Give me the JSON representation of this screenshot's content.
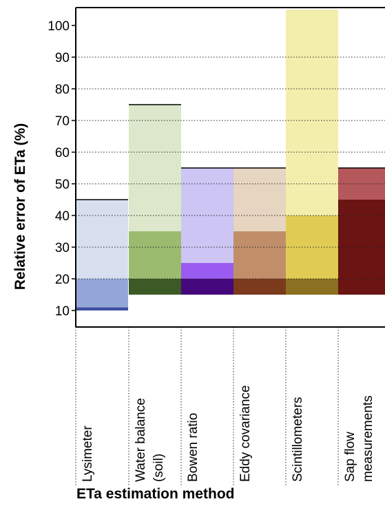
{
  "chart_data": {
    "type": "bar",
    "ylabel": "Relative error of ETa (%)",
    "xlabel": "ETa estimation method",
    "yticks": [
      10,
      20,
      30,
      40,
      50,
      60,
      70,
      80,
      90,
      100
    ],
    "ylim": [
      0,
      105
    ],
    "grid": "horizontal dotted",
    "categories": [
      {
        "label": [
          "Lysimeter"
        ]
      },
      {
        "label": [
          "Water balance",
          "(soil)"
        ]
      },
      {
        "label": [
          "Bowen ratio"
        ]
      },
      {
        "label": [
          "Eddy covariance"
        ]
      },
      {
        "label": [
          "Scintillometers"
        ]
      },
      {
        "label": [
          "Sap flow",
          "measurements"
        ]
      }
    ],
    "bands": [
      [
        {
          "from": 10,
          "to": 11,
          "color": "#3d4fa0"
        },
        {
          "from": 11,
          "to": 20,
          "color": "#94a5d8"
        },
        {
          "from": 20,
          "to": 45,
          "color": "#d7dfef"
        }
      ],
      [
        {
          "from": 15,
          "to": 20,
          "color": "#3c5a26"
        },
        {
          "from": 20,
          "to": 35,
          "color": "#9bbb6e"
        },
        {
          "from": 35,
          "to": 75,
          "color": "#dce7cb"
        }
      ],
      [
        {
          "from": 15,
          "to": 20,
          "color": "#45087c"
        },
        {
          "from": 20,
          "to": 25,
          "color": "#9a5cf0"
        },
        {
          "from": 25,
          "to": 55,
          "color": "#cdc5f4"
        }
      ],
      [
        {
          "from": 15,
          "to": 20,
          "color": "#7c3a1d"
        },
        {
          "from": 20,
          "to": 35,
          "color": "#c08f6a"
        },
        {
          "from": 35,
          "to": 55,
          "color": "#e6d5c0"
        }
      ],
      [
        {
          "from": 15,
          "to": 20,
          "color": "#8a7020"
        },
        {
          "from": 20,
          "to": 40,
          "color": "#e0cc55"
        },
        {
          "from": 40,
          "to": 105,
          "color": "#f2eeac"
        }
      ],
      [
        {
          "from": 15,
          "to": 45,
          "color": "#6a1414"
        },
        {
          "from": 45,
          "to": 55,
          "color": "#b4585c"
        }
      ]
    ]
  }
}
